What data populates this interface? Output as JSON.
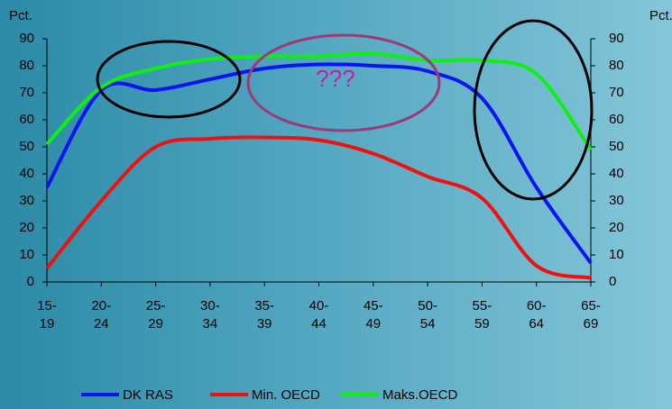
{
  "chart_data": {
    "type": "line",
    "y_label": "Pct.",
    "y2_label": "Pct.",
    "annotation": "???",
    "categories": [
      "15-\n19",
      "20-\n24",
      "25-\n29",
      "30-\n34",
      "35-\n39",
      "40-\n44",
      "45-\n49",
      "50-\n54",
      "55-\n59",
      "60-\n64",
      "65-\n69"
    ],
    "series": [
      {
        "name": "DK RAS",
        "color": "#0a14f0",
        "values": [
          35,
          71,
          71,
          75,
          79,
          80.5,
          80,
          78,
          68,
          35,
          7
        ]
      },
      {
        "name": "Min. OECD",
        "color": "#f01010",
        "values": [
          5,
          30,
          50,
          53,
          53.5,
          52.5,
          47.5,
          39,
          31,
          6,
          1.5
        ]
      },
      {
        "name": "Maks.OECD",
        "color": "#10f010",
        "values": [
          51,
          72,
          79,
          82.5,
          83.5,
          83.5,
          84.5,
          82,
          82,
          77,
          49
        ]
      }
    ],
    "ylim": [
      0,
      90
    ],
    "yticks": [
      0,
      10,
      20,
      30,
      40,
      50,
      60,
      70,
      80,
      90
    ],
    "y2lim": [
      0,
      90
    ],
    "y2ticks": [
      0,
      10,
      20,
      30,
      40,
      50,
      60,
      70,
      80,
      90
    ],
    "grid": false,
    "legend": "bottom"
  }
}
